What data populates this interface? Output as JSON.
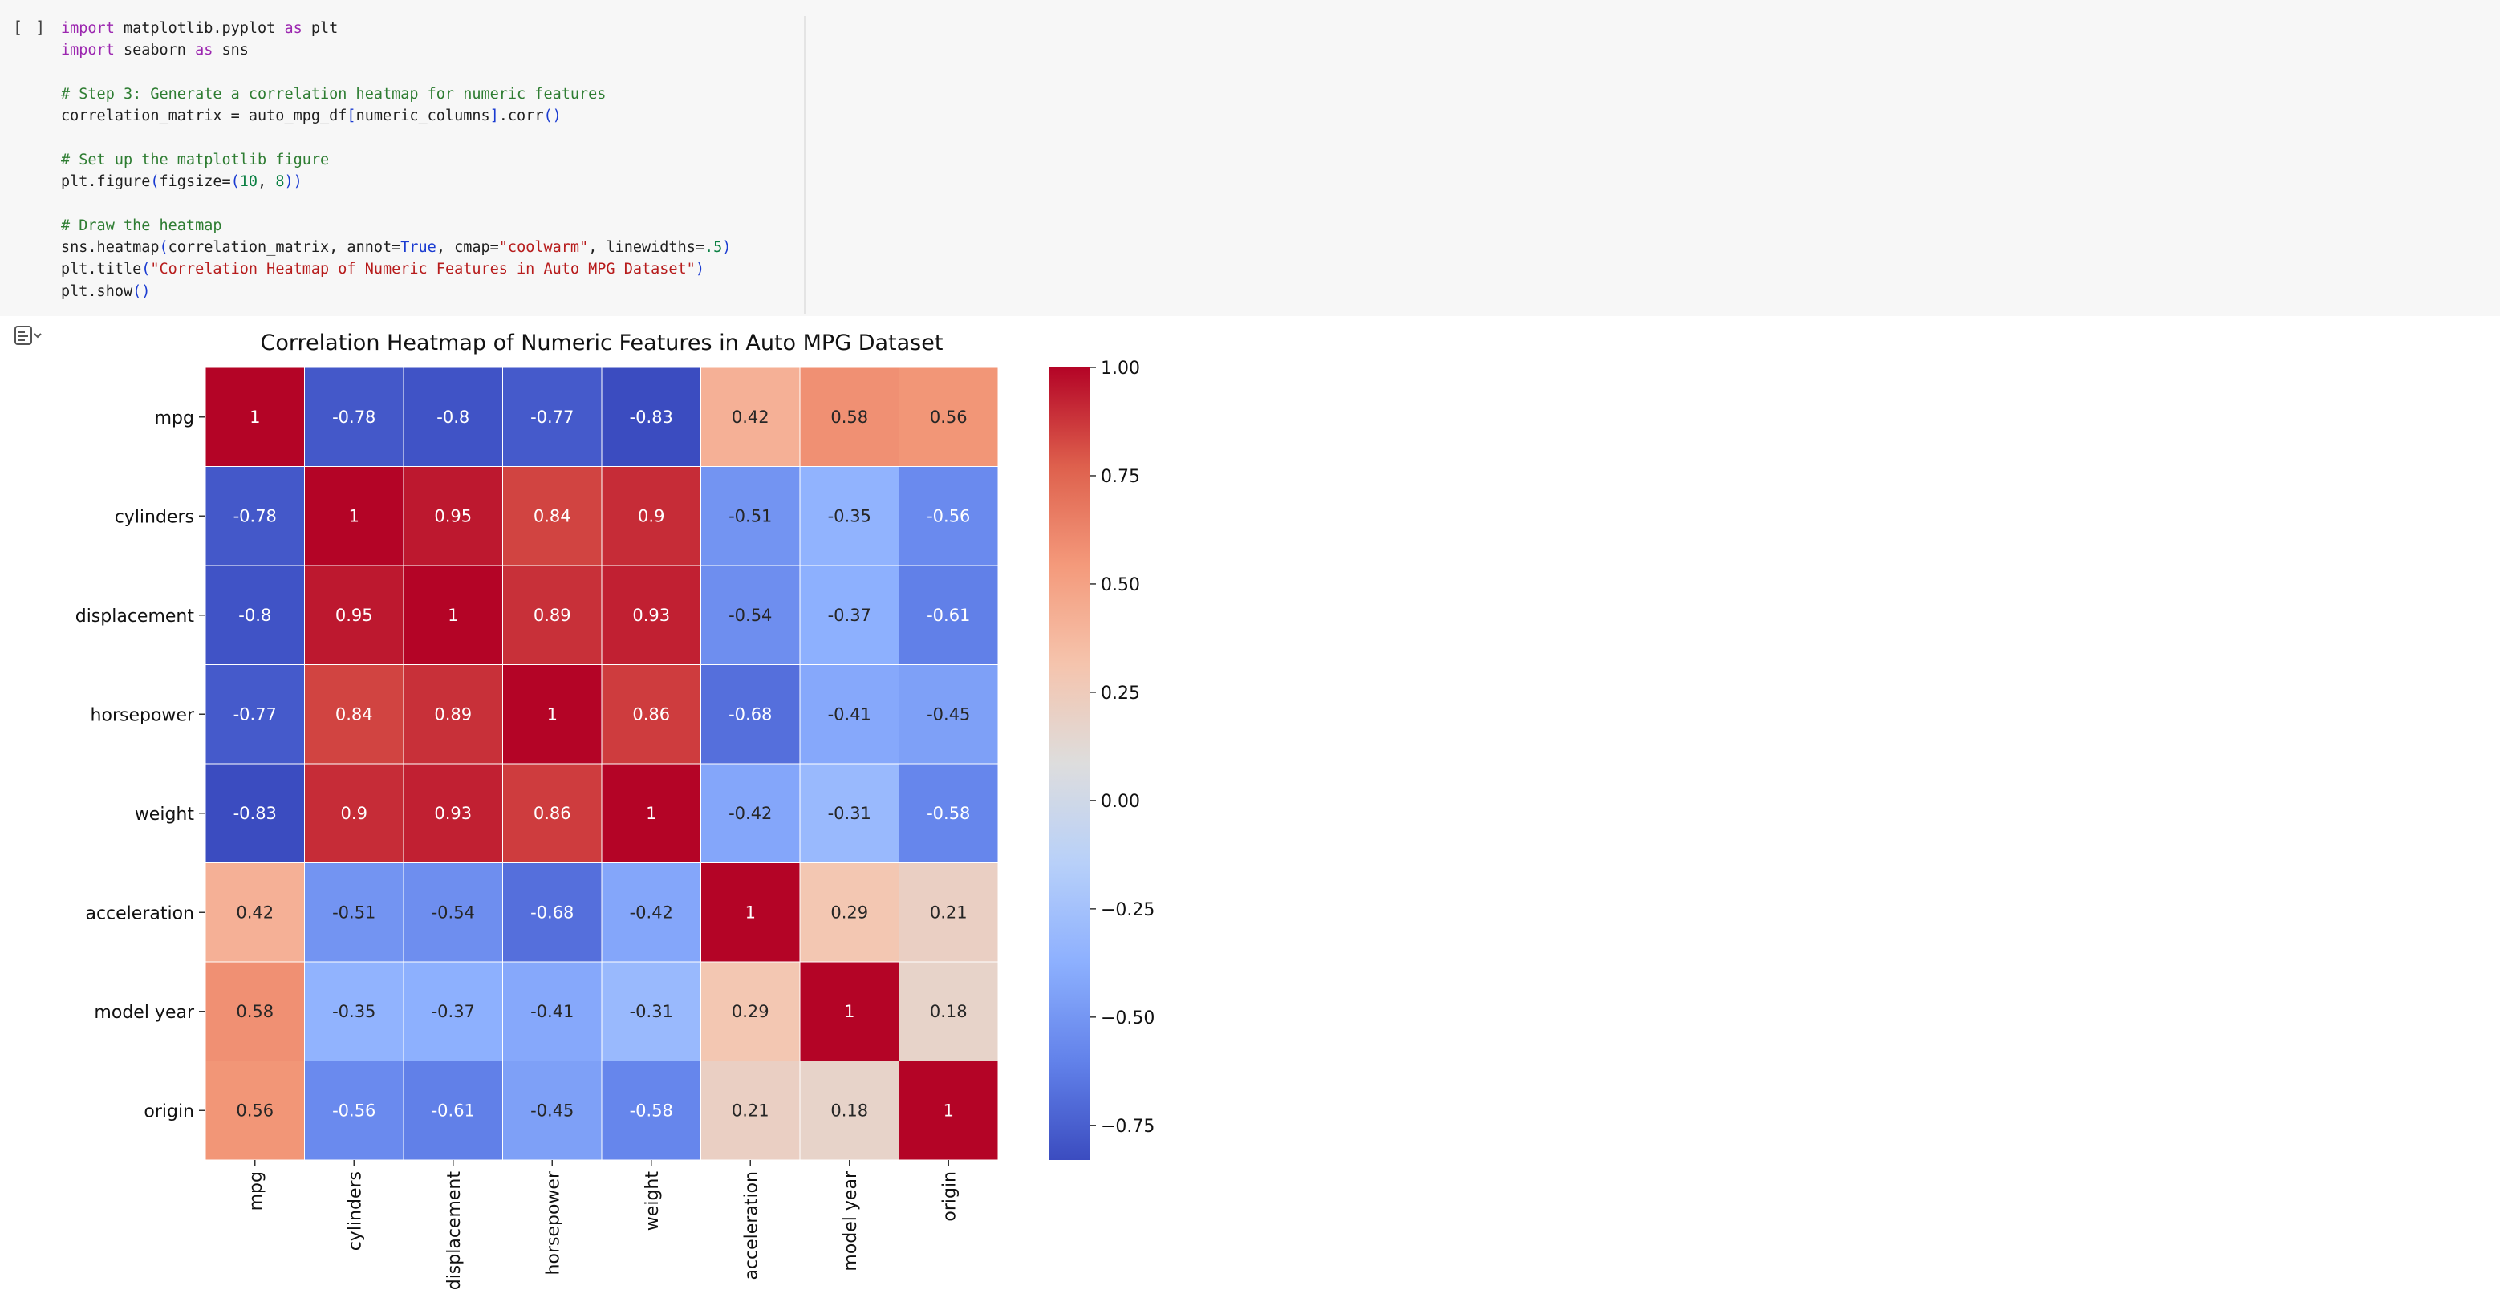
{
  "cell": {
    "run_marker": "[ ]",
    "code_lines": [
      [
        {
          "t": "import",
          "c": "kw"
        },
        {
          "t": " matplotlib.pyplot "
        },
        {
          "t": "as",
          "c": "kw"
        },
        {
          "t": " plt"
        }
      ],
      [
        {
          "t": "import",
          "c": "kw"
        },
        {
          "t": " seaborn "
        },
        {
          "t": "as",
          "c": "kw"
        },
        {
          "t": " sns"
        }
      ],
      [],
      [
        {
          "t": "# Step 3: Generate a correlation heatmap for numeric features",
          "c": "cm"
        }
      ],
      [
        {
          "t": "correlation_matrix = auto_mpg_df"
        },
        {
          "t": "[",
          "c": "par"
        },
        {
          "t": "numeric_columns"
        },
        {
          "t": "]",
          "c": "par"
        },
        {
          "t": ".corr"
        },
        {
          "t": "()",
          "c": "par"
        }
      ],
      [],
      [
        {
          "t": "# Set up the matplotlib figure",
          "c": "cm"
        }
      ],
      [
        {
          "t": "plt.figure"
        },
        {
          "t": "(",
          "c": "par"
        },
        {
          "t": "figsize="
        },
        {
          "t": "(",
          "c": "par"
        },
        {
          "t": "10",
          "c": "num"
        },
        {
          "t": ", "
        },
        {
          "t": "8",
          "c": "num"
        },
        {
          "t": "))",
          "c": "par"
        }
      ],
      [],
      [
        {
          "t": "# Draw the heatmap",
          "c": "cm"
        }
      ],
      [
        {
          "t": "sns.heatmap"
        },
        {
          "t": "(",
          "c": "par"
        },
        {
          "t": "correlation_matrix, annot="
        },
        {
          "t": "True",
          "c": "kwc"
        },
        {
          "t": ", cmap="
        },
        {
          "t": "\"coolwarm\"",
          "c": "str"
        },
        {
          "t": ", linewidths="
        },
        {
          "t": ".5",
          "c": "num"
        },
        {
          "t": ")",
          "c": "par"
        }
      ],
      [
        {
          "t": "plt.title"
        },
        {
          "t": "(",
          "c": "par"
        },
        {
          "t": "\"Correlation Heatmap of Numeric Features in Auto MPG Dataset\"",
          "c": "str"
        },
        {
          "t": ")",
          "c": "par"
        }
      ],
      [
        {
          "t": "plt.show"
        },
        {
          "t": "()",
          "c": "par"
        }
      ]
    ]
  },
  "output_icon": "output-toggle-icon",
  "chart_data": {
    "type": "heatmap",
    "title": "Correlation Heatmap of Numeric Features in Auto MPG Dataset",
    "row_labels": [
      "mpg",
      "cylinders",
      "displacement",
      "horsepower",
      "weight",
      "acceleration",
      "model year",
      "origin"
    ],
    "col_labels": [
      "mpg",
      "cylinders",
      "displacement",
      "horsepower",
      "weight",
      "acceleration",
      "model year",
      "origin"
    ],
    "values": [
      [
        1,
        -0.78,
        -0.8,
        -0.77,
        -0.83,
        0.42,
        0.58,
        0.56
      ],
      [
        -0.78,
        1,
        0.95,
        0.84,
        0.9,
        -0.51,
        -0.35,
        -0.56
      ],
      [
        -0.8,
        0.95,
        1,
        0.89,
        0.93,
        -0.54,
        -0.37,
        -0.61
      ],
      [
        -0.77,
        0.84,
        0.89,
        1,
        0.86,
        -0.68,
        -0.41,
        -0.45
      ],
      [
        -0.83,
        0.9,
        0.93,
        0.86,
        1,
        -0.42,
        -0.31,
        -0.58
      ],
      [
        0.42,
        -0.51,
        -0.54,
        -0.68,
        -0.42,
        1,
        0.29,
        0.21
      ],
      [
        0.58,
        -0.35,
        -0.37,
        -0.41,
        -0.31,
        0.29,
        1,
        0.18
      ],
      [
        0.56,
        -0.56,
        -0.61,
        -0.45,
        -0.58,
        0.21,
        0.18,
        1
      ]
    ],
    "colormap": "coolwarm",
    "vmin": -0.83,
    "vmax": 1.0,
    "colorbar_ticks": [
      1.0,
      0.75,
      0.5,
      0.25,
      0.0,
      -0.25,
      -0.5,
      -0.75
    ],
    "colorbar_tick_labels": [
      "1.00",
      "0.75",
      "0.50",
      "0.25",
      "0.00",
      "−0.25",
      "−0.50",
      "−0.75"
    ],
    "xlabel": "",
    "ylabel": ""
  }
}
